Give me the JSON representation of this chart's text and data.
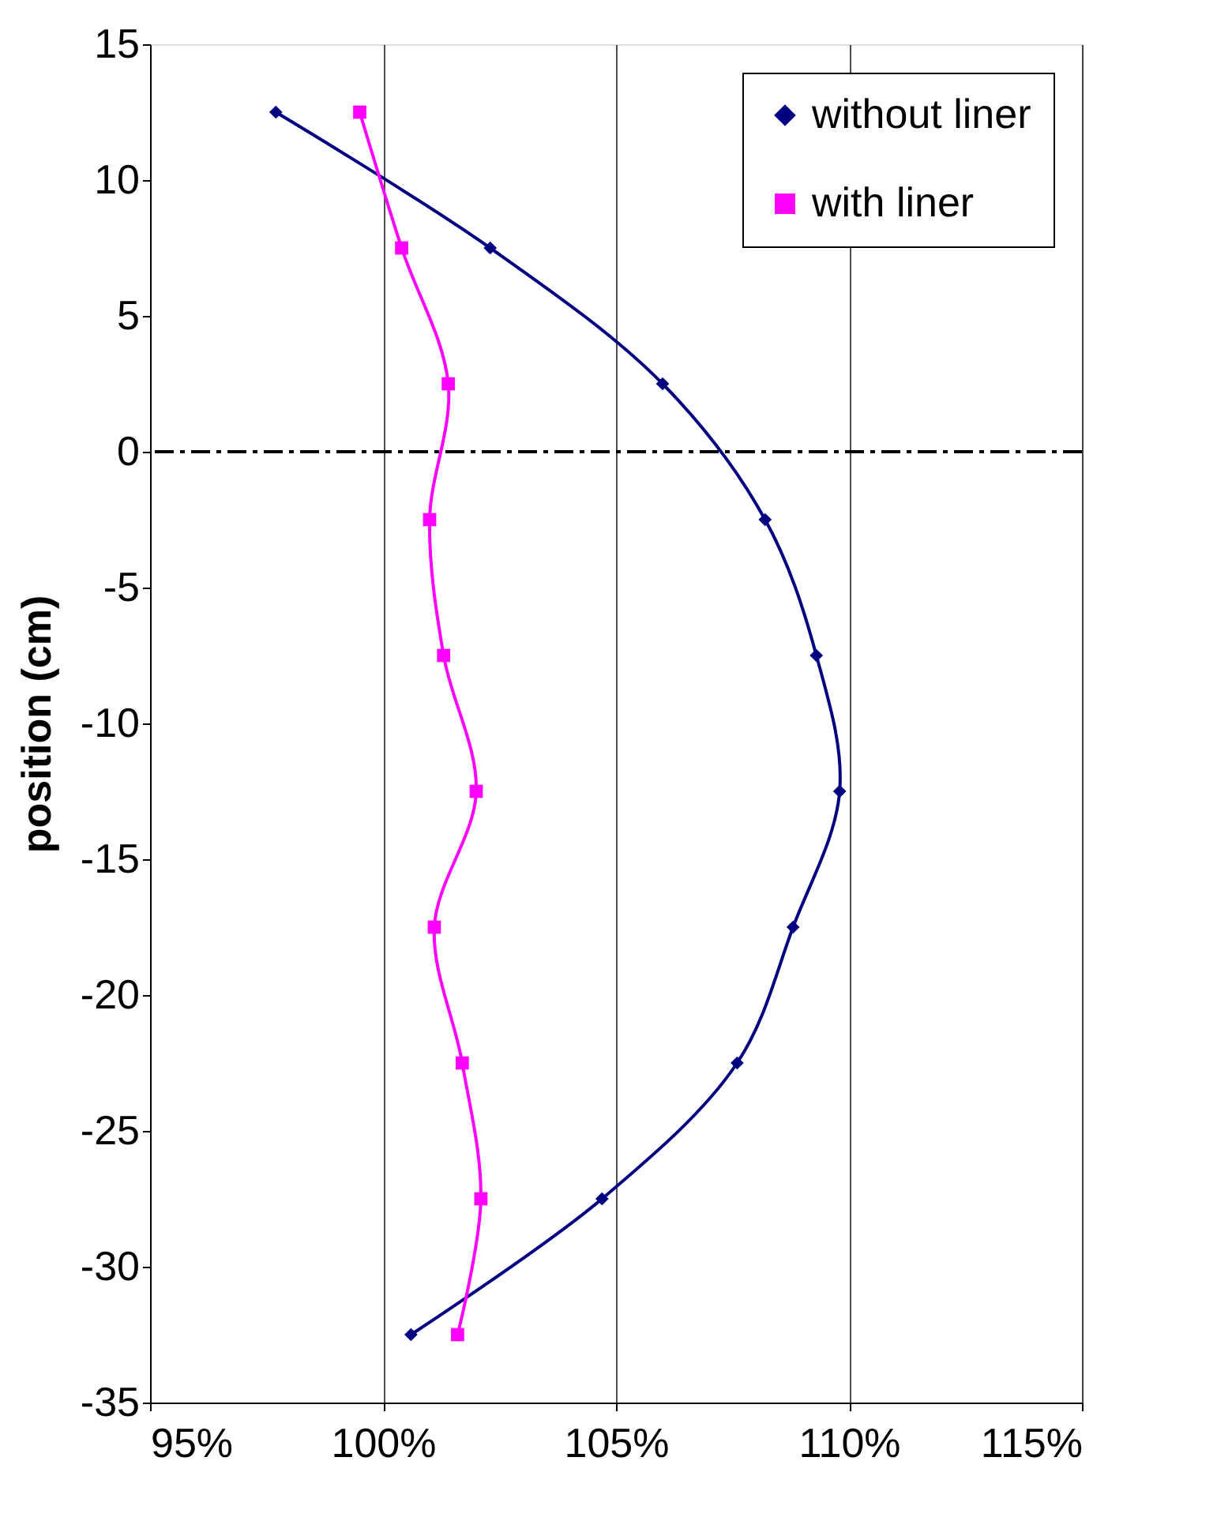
{
  "chart_data": {
    "type": "line",
    "ylabel": "position (cm)",
    "series": [
      {
        "name": "without liner",
        "color": "#000080",
        "marker": "diamond",
        "x": [
          97.7,
          102.3,
          106.0,
          108.2,
          109.3,
          109.8,
          108.8,
          107.6,
          104.7,
          100.6
        ],
        "values": [
          12.5,
          7.5,
          2.5,
          -2.5,
          -7.5,
          -12.5,
          -17.5,
          -22.5,
          -27.5,
          -32.5
        ]
      },
      {
        "name": "with liner",
        "color": "#ff00ff",
        "marker": "square",
        "x": [
          99.5,
          100.4,
          101.4,
          101.0,
          101.3,
          102.0,
          101.1,
          101.7,
          102.1,
          101.6
        ],
        "values": [
          12.5,
          7.5,
          2.5,
          -2.5,
          -7.5,
          -12.5,
          -17.5,
          -22.5,
          -27.5,
          -32.5
        ]
      }
    ],
    "xlim": [
      95,
      115
    ],
    "xticks": [
      {
        "value": 95,
        "label": "95%"
      },
      {
        "value": 100,
        "label": "100%"
      },
      {
        "value": 105,
        "label": "105%"
      },
      {
        "value": 110,
        "label": "110%"
      },
      {
        "value": 115,
        "label": "115%"
      }
    ],
    "ylim": [
      -35,
      15
    ],
    "yticks": [
      -35,
      -30,
      -25,
      -20,
      -15,
      -10,
      -5,
      0,
      5,
      10,
      15
    ],
    "ref_lines": [
      {
        "axis": "y",
        "value": 0,
        "color": "#000000",
        "line_style": "dashed"
      }
    ],
    "grid": "x",
    "legend": "top right",
    "line_style": "solid"
  }
}
